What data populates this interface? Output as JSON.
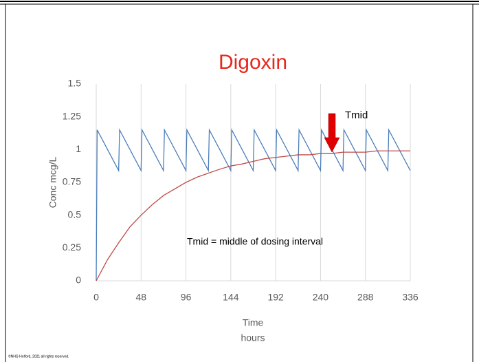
{
  "chart_data": {
    "type": "line",
    "title": "Digoxin",
    "ylabel": "Conc mcg/L",
    "xlabel": [
      "Time",
      "hours"
    ],
    "annotations": [
      "Tmid",
      "Tmid = middle of dosing interval"
    ],
    "footer": "©NHG Holford, 2021  all rights reserved.",
    "xlim": [
      0,
      336
    ],
    "xticks": [
      0,
      48,
      96,
      144,
      192,
      240,
      288,
      336
    ],
    "ylim": [
      0,
      1.5
    ],
    "yticks": [
      0,
      0.25,
      0.5,
      0.75,
      1,
      1.25,
      1.5
    ],
    "grid": true,
    "series": [
      {
        "color": "#4a7ebb",
        "x": [
          0,
          1,
          24,
          25,
          48,
          49,
          72,
          73,
          96,
          97,
          120,
          121,
          144,
          145,
          168,
          169,
          192,
          193,
          216,
          217,
          240,
          241,
          264,
          265,
          288,
          289,
          312,
          313,
          336
        ],
        "values": [
          0,
          1.15,
          0.84,
          1.15,
          0.84,
          1.15,
          0.84,
          1.15,
          0.84,
          1.15,
          0.84,
          1.15,
          0.84,
          1.15,
          0.84,
          1.15,
          0.84,
          1.15,
          0.84,
          1.15,
          0.84,
          1.15,
          0.84,
          1.15,
          0.84,
          1.15,
          0.84,
          1.15,
          0.84
        ]
      },
      {
        "color": "#be4b48",
        "x": [
          0,
          12,
          24,
          36,
          48,
          60,
          72,
          84,
          96,
          108,
          120,
          132,
          144,
          156,
          168,
          180,
          192,
          204,
          216,
          228,
          240,
          252,
          264,
          276,
          288,
          300,
          312,
          324,
          336
        ],
        "values": [
          0,
          0.16,
          0.29,
          0.41,
          0.5,
          0.58,
          0.65,
          0.7,
          0.75,
          0.79,
          0.82,
          0.85,
          0.875,
          0.89,
          0.91,
          0.93,
          0.94,
          0.95,
          0.96,
          0.96,
          0.97,
          0.97,
          0.98,
          0.98,
          0.98,
          0.99,
          0.99,
          0.99,
          0.99
        ]
      }
    ]
  }
}
